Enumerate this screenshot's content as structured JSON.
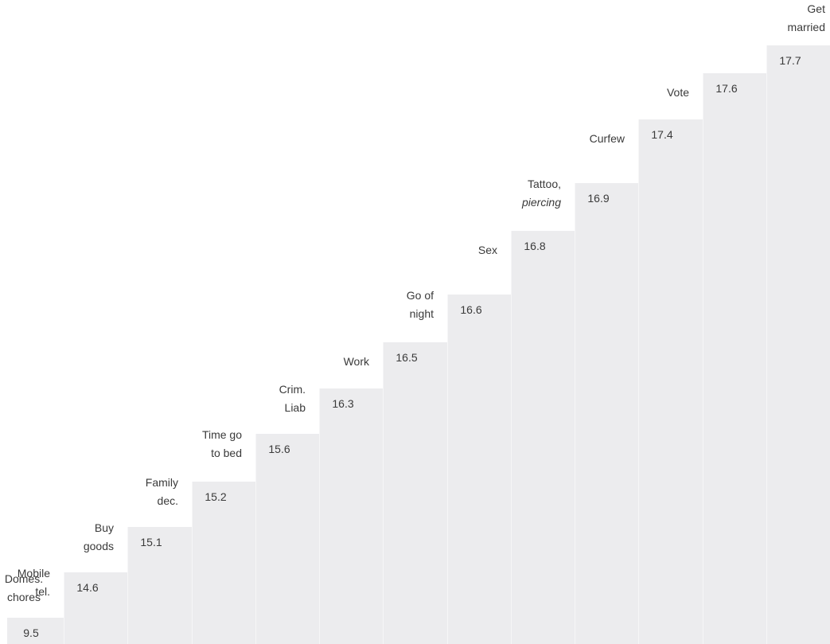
{
  "chart_data": {
    "type": "bar",
    "title": "",
    "xlabel": "",
    "ylabel": "",
    "categories": [
      [
        "Domes.",
        "chores"
      ],
      [
        "Mobile",
        "tel."
      ],
      [
        "Buy",
        "goods"
      ],
      [
        "Family",
        "dec."
      ],
      [
        "Time go",
        "to bed"
      ],
      [
        "Crim.",
        "Liab"
      ],
      [
        "Work"
      ],
      [
        "Go of",
        "night"
      ],
      [
        "Sex"
      ],
      [
        "Tattoo,",
        "piercing"
      ],
      [
        "Curfew"
      ],
      [
        "Vote"
      ],
      [
        "Get",
        "married"
      ]
    ],
    "italic_second_line": [
      false,
      false,
      false,
      false,
      false,
      false,
      false,
      false,
      false,
      true,
      false,
      false,
      false
    ],
    "values": [
      9.5,
      14.6,
      15.1,
      15.2,
      15.6,
      16.3,
      16.5,
      16.6,
      16.8,
      16.9,
      17.4,
      17.6,
      17.7
    ],
    "value_labels": [
      "9.5",
      "14.6",
      "15.1",
      "15.2",
      "15.6",
      "16.3",
      "16.5",
      "16.6",
      "16.8",
      "16.9",
      "17.4",
      "17.6",
      "17.7"
    ],
    "bar_color": "#ececee",
    "text_color": "#3a3a3a",
    "grid": false,
    "legend": "none"
  }
}
